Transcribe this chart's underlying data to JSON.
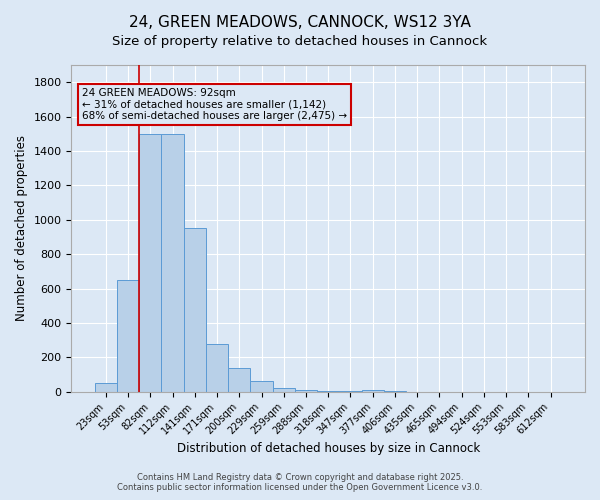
{
  "title": "24, GREEN MEADOWS, CANNOCK, WS12 3YA",
  "subtitle": "Size of property relative to detached houses in Cannock",
  "xlabel": "Distribution of detached houses by size in Cannock",
  "ylabel": "Number of detached properties",
  "bar_color": "#b8d0e8",
  "bar_edge_color": "#5b9bd5",
  "bg_color": "#dce8f5",
  "grid_color": "#ffffff",
  "categories": [
    "23sqm",
    "53sqm",
    "82sqm",
    "112sqm",
    "141sqm",
    "171sqm",
    "200sqm",
    "229sqm",
    "259sqm",
    "288sqm",
    "318sqm",
    "347sqm",
    "377sqm",
    "406sqm",
    "435sqm",
    "465sqm",
    "494sqm",
    "524sqm",
    "553sqm",
    "583sqm",
    "612sqm"
  ],
  "values": [
    50,
    650,
    1500,
    1500,
    950,
    280,
    140,
    60,
    20,
    8,
    4,
    2,
    12,
    2,
    0,
    0,
    0,
    0,
    0,
    0,
    0
  ],
  "red_line_index": 2,
  "annotation_text": "24 GREEN MEADOWS: 92sqm\n← 31% of detached houses are smaller (1,142)\n68% of semi-detached houses are larger (2,475) →",
  "ylim": [
    0,
    1900
  ],
  "footnote": "Contains HM Land Registry data © Crown copyright and database right 2025.\nContains public sector information licensed under the Open Government Licence v3.0.",
  "title_fontsize": 11,
  "subtitle_fontsize": 9.5,
  "tick_fontsize": 7,
  "label_fontsize": 8.5,
  "footnote_fontsize": 6
}
